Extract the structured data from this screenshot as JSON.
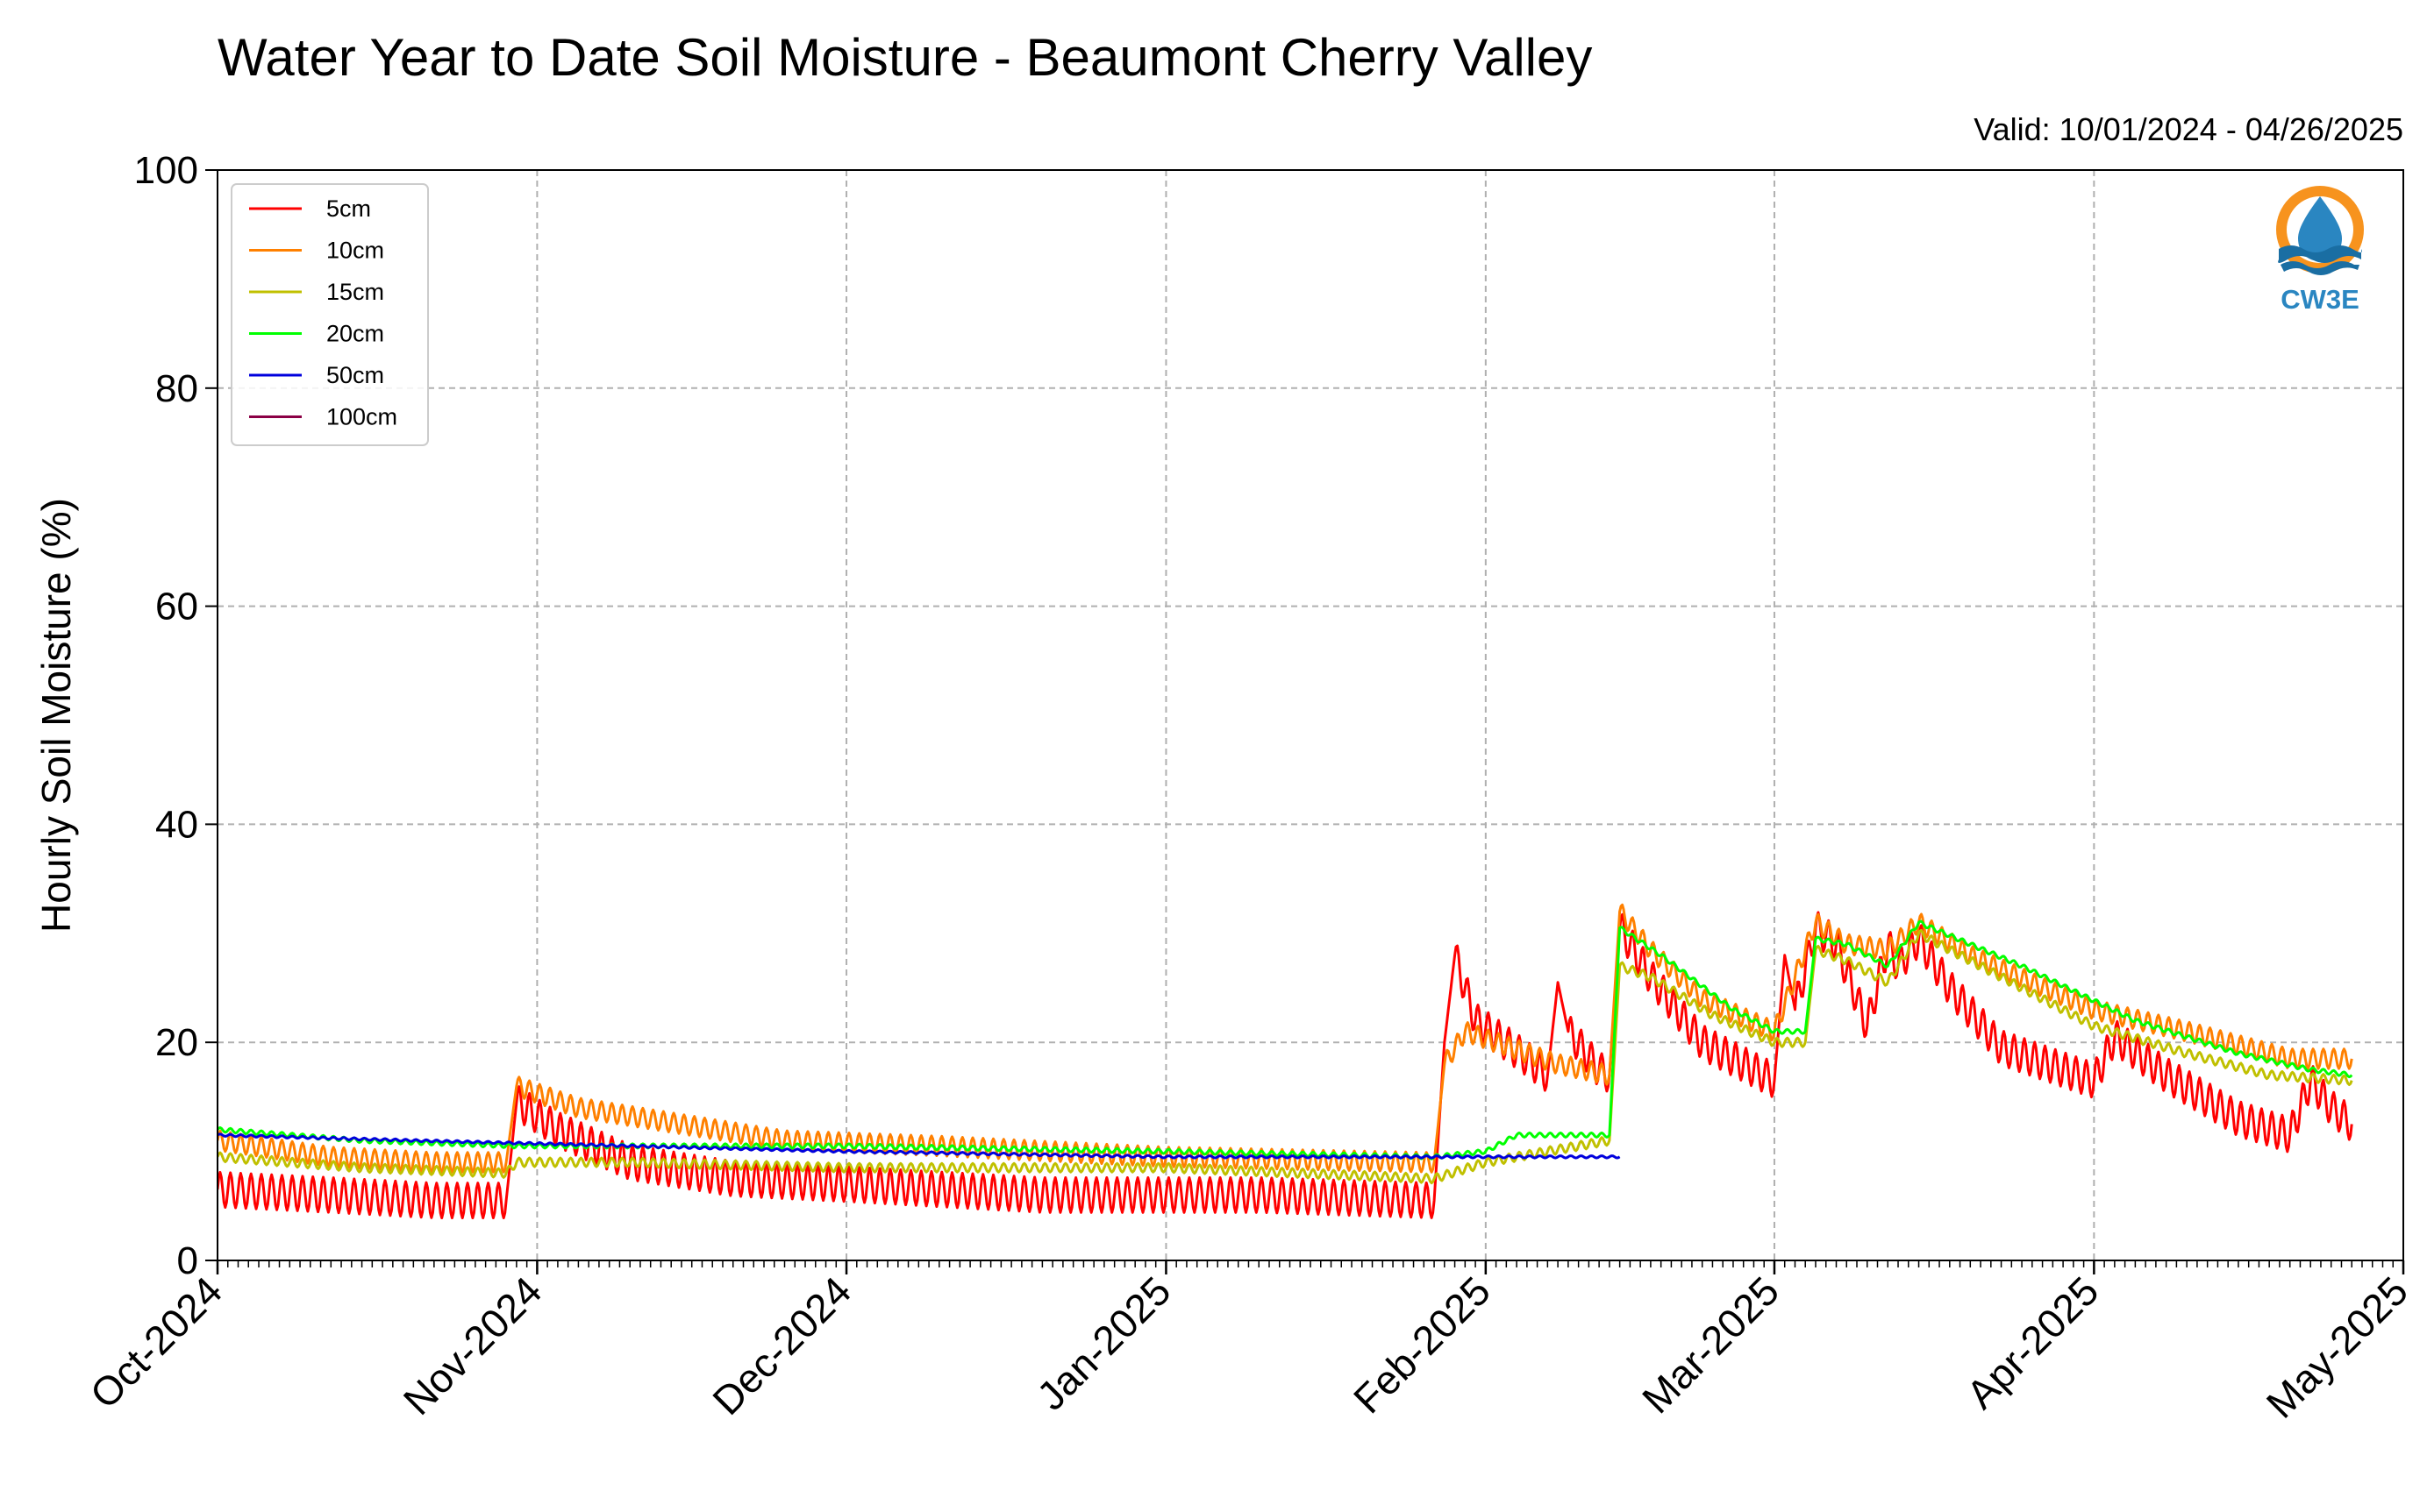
{
  "chart_data": {
    "type": "line",
    "title": "Water Year to Date Soil Moisture - Beaumont Cherry Valley",
    "subtitle": "Valid: 10/01/2024 - 04/26/2025",
    "ylabel": "Hourly Soil Moisture (%)",
    "xlabel": "",
    "ylim": [
      0,
      100
    ],
    "yticks": [
      0,
      20,
      40,
      60,
      80,
      100
    ],
    "xlim": [
      "2024-10-01",
      "2025-05-01"
    ],
    "xticks": [
      {
        "date": "2024-10-01",
        "label": "Oct-2024"
      },
      {
        "date": "2024-11-01",
        "label": "Nov-2024"
      },
      {
        "date": "2024-12-01",
        "label": "Dec-2024"
      },
      {
        "date": "2025-01-01",
        "label": "Jan-2025"
      },
      {
        "date": "2025-02-01",
        "label": "Feb-2025"
      },
      {
        "date": "2025-03-01",
        "label": "Mar-2025"
      },
      {
        "date": "2025-04-01",
        "label": "Apr-2025"
      },
      {
        "date": "2025-05-01",
        "label": "May-2025"
      }
    ],
    "grid": true,
    "legend_position": "top-left",
    "logo_text": "CW3E",
    "series": [
      {
        "name": "5cm",
        "color": "#ff0000",
        "diurnal_amplitude": 1.6,
        "points": [
          [
            "2024-10-01",
            6.5
          ],
          [
            "2024-10-12",
            6.0
          ],
          [
            "2024-10-22",
            5.5
          ],
          [
            "2024-10-29",
            5.5
          ],
          [
            "2024-10-30",
            14.5
          ],
          [
            "2024-11-03",
            12.0
          ],
          [
            "2024-11-10",
            9.0
          ],
          [
            "2024-11-20",
            7.5
          ],
          [
            "2024-12-01",
            7.0
          ],
          [
            "2024-12-20",
            6.0
          ],
          [
            "2025-01-10",
            6.0
          ],
          [
            "2025-01-27",
            5.5
          ],
          [
            "2025-01-28",
            20.0
          ],
          [
            "2025-01-29",
            28.0
          ],
          [
            "2025-01-31",
            22.0
          ],
          [
            "2025-02-05",
            18.5
          ],
          [
            "2025-02-07",
            17.0
          ],
          [
            "2025-02-08",
            25.5
          ],
          [
            "2025-02-09",
            21.0
          ],
          [
            "2025-02-12",
            17.5
          ],
          [
            "2025-02-13",
            17.0
          ],
          [
            "2025-02-14",
            30.5
          ],
          [
            "2025-02-17",
            26.0
          ],
          [
            "2025-02-22",
            20.0
          ],
          [
            "2025-03-01",
            16.5
          ],
          [
            "2025-03-02",
            28.0
          ],
          [
            "2025-03-03",
            23.0
          ],
          [
            "2025-03-05",
            30.5
          ],
          [
            "2025-03-07",
            29.0
          ],
          [
            "2025-03-10",
            21.5
          ],
          [
            "2025-03-12",
            29.0
          ],
          [
            "2025-03-13",
            27.0
          ],
          [
            "2025-03-15",
            29.5
          ],
          [
            "2025-03-18",
            25.0
          ],
          [
            "2025-03-23",
            19.5
          ],
          [
            "2025-04-01",
            16.5
          ],
          [
            "2025-04-03",
            20.5
          ],
          [
            "2025-04-08",
            17.0
          ],
          [
            "2025-04-15",
            13.0
          ],
          [
            "2025-04-20",
            11.5
          ],
          [
            "2025-04-22",
            16.5
          ],
          [
            "2025-04-24",
            14.0
          ],
          [
            "2025-04-26",
            12.5
          ]
        ]
      },
      {
        "name": "10cm",
        "color": "#ff8000",
        "diurnal_amplitude": 0.9,
        "points": [
          [
            "2024-10-01",
            11.0
          ],
          [
            "2024-10-12",
            9.5
          ],
          [
            "2024-10-22",
            9.0
          ],
          [
            "2024-10-29",
            9.0
          ],
          [
            "2024-10-30",
            16.0
          ],
          [
            "2024-11-05",
            14.0
          ],
          [
            "2024-11-15",
            12.5
          ],
          [
            "2024-11-25",
            11.0
          ],
          [
            "2024-12-10",
            10.5
          ],
          [
            "2025-01-01",
            9.5
          ],
          [
            "2025-01-27",
            9.0
          ],
          [
            "2025-01-28",
            18.0
          ],
          [
            "2025-01-30",
            21.0
          ],
          [
            "2025-02-02",
            20.0
          ],
          [
            "2025-02-08",
            18.0
          ],
          [
            "2025-02-13",
            17.0
          ],
          [
            "2025-02-14",
            32.0
          ],
          [
            "2025-02-17",
            28.5
          ],
          [
            "2025-02-22",
            24.0
          ],
          [
            "2025-03-01",
            21.0
          ],
          [
            "2025-03-05",
            31.0
          ],
          [
            "2025-03-08",
            29.0
          ],
          [
            "2025-03-12",
            28.5
          ],
          [
            "2025-03-15",
            31.0
          ],
          [
            "2025-03-20",
            28.0
          ],
          [
            "2025-04-01",
            23.0
          ],
          [
            "2025-04-10",
            21.0
          ],
          [
            "2025-04-20",
            18.5
          ],
          [
            "2025-04-26",
            18.5
          ]
        ]
      },
      {
        "name": "15cm",
        "color": "#c0c000",
        "diurnal_amplitude": 0.4,
        "points": [
          [
            "2024-10-01",
            9.5
          ],
          [
            "2024-10-15",
            8.5
          ],
          [
            "2024-10-29",
            8.0
          ],
          [
            "2024-10-30",
            9.0
          ],
          [
            "2024-11-10",
            9.0
          ],
          [
            "2024-12-01",
            8.5
          ],
          [
            "2025-01-01",
            8.5
          ],
          [
            "2025-01-27",
            7.5
          ],
          [
            "2025-02-01",
            9.0
          ],
          [
            "2025-02-13",
            11.0
          ],
          [
            "2025-02-14",
            27.0
          ],
          [
            "2025-02-17",
            26.0
          ],
          [
            "2025-02-23",
            22.5
          ],
          [
            "2025-03-01",
            20.0
          ],
          [
            "2025-03-04",
            20.0
          ],
          [
            "2025-03-05",
            28.5
          ],
          [
            "2025-03-08",
            27.5
          ],
          [
            "2025-03-12",
            25.5
          ],
          [
            "2025-03-15",
            30.0
          ],
          [
            "2025-03-22",
            26.5
          ],
          [
            "2025-04-01",
            21.5
          ],
          [
            "2025-04-10",
            19.0
          ],
          [
            "2025-04-18",
            17.0
          ],
          [
            "2025-04-26",
            16.5
          ]
        ]
      },
      {
        "name": "20cm",
        "color": "#00ff00",
        "diurnal_amplitude": 0.2,
        "points": [
          [
            "2024-10-01",
            12.0
          ],
          [
            "2024-10-15",
            11.0
          ],
          [
            "2024-10-30",
            10.5
          ],
          [
            "2024-11-15",
            10.5
          ],
          [
            "2024-12-01",
            10.5
          ],
          [
            "2025-01-01",
            10.0
          ],
          [
            "2025-01-27",
            9.5
          ],
          [
            "2025-02-01",
            10.0
          ],
          [
            "2025-02-04",
            11.5
          ],
          [
            "2025-02-13",
            11.5
          ],
          [
            "2025-02-14",
            30.5
          ],
          [
            "2025-02-18",
            28.0
          ],
          [
            "2025-02-25",
            23.0
          ],
          [
            "2025-03-01",
            21.0
          ],
          [
            "2025-03-04",
            21.0
          ],
          [
            "2025-03-05",
            29.5
          ],
          [
            "2025-03-08",
            29.0
          ],
          [
            "2025-03-12",
            27.0
          ],
          [
            "2025-03-15",
            31.0
          ],
          [
            "2025-03-25",
            27.0
          ],
          [
            "2025-04-05",
            22.0
          ],
          [
            "2025-04-15",
            19.0
          ],
          [
            "2025-04-22",
            17.5
          ],
          [
            "2025-04-26",
            17.0
          ]
        ]
      },
      {
        "name": "50cm",
        "color": "#0000dd",
        "diurnal_amplitude": 0.1,
        "points": [
          [
            "2024-10-01",
            11.5
          ],
          [
            "2024-10-20",
            11.0
          ],
          [
            "2024-11-10",
            10.5
          ],
          [
            "2024-12-01",
            10.0
          ],
          [
            "2025-01-01",
            9.5
          ],
          [
            "2025-01-25",
            9.5
          ],
          [
            "2025-02-01",
            9.5
          ],
          [
            "2025-02-14",
            9.5
          ]
        ]
      },
      {
        "name": "100cm",
        "color": "#8b0045",
        "diurnal_amplitude": 0,
        "points": []
      }
    ]
  }
}
